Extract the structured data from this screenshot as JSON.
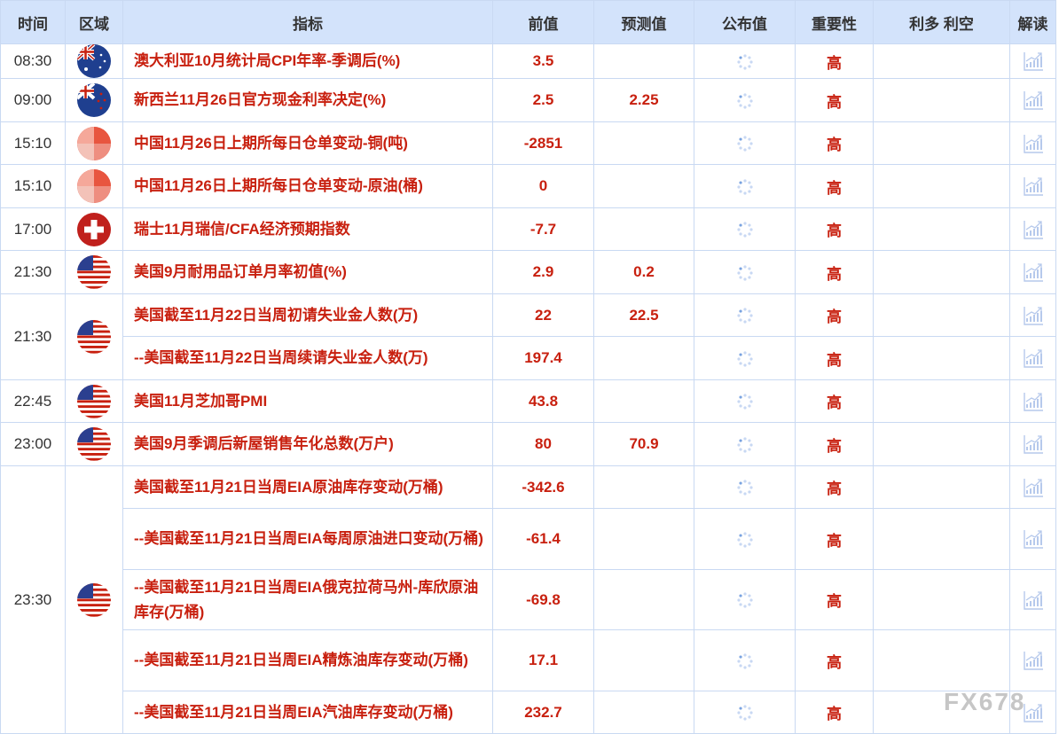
{
  "header": {
    "time": "时间",
    "region": "区域",
    "indicator": "指标",
    "previous": "前值",
    "forecast": "预测值",
    "actual": "公布值",
    "importance": "重要性",
    "impact": "利多 利空",
    "interpret": "解读"
  },
  "colors": {
    "header_bg": "#d3e3fb",
    "accent": "#c8200f",
    "border": "#c9d9f2"
  },
  "groups": [
    {
      "time": "08:30",
      "flag": "australia-flag",
      "rows": [
        {
          "indicator": "澳大利亚10月统计局CPI年率-季调后(%)",
          "previous": "3.5",
          "forecast": "",
          "importance": "高"
        }
      ]
    },
    {
      "time": "09:00",
      "flag": "new-zealand-flag",
      "rows": [
        {
          "indicator": "新西兰11月26日官方现金利率决定(%)",
          "previous": "2.5",
          "forecast": "2.25",
          "importance": "高"
        }
      ]
    },
    {
      "time": "15:10",
      "flag": "china-flag",
      "rows": [
        {
          "indicator": "中国11月26日上期所每日仓单变动-铜(吨)",
          "previous": "-2851",
          "forecast": "",
          "importance": "高"
        }
      ]
    },
    {
      "time": "15:10",
      "flag": "china-flag",
      "rows": [
        {
          "indicator": "中国11月26日上期所每日仓单变动-原油(桶)",
          "previous": "0",
          "forecast": "",
          "importance": "高"
        }
      ]
    },
    {
      "time": "17:00",
      "flag": "switzerland-flag",
      "rows": [
        {
          "indicator": "瑞士11月瑞信/CFA经济预期指数",
          "previous": "-7.7",
          "forecast": "",
          "importance": "高"
        }
      ]
    },
    {
      "time": "21:30",
      "flag": "usa-flag",
      "rows": [
        {
          "indicator": "美国9月耐用品订单月率初值(%)",
          "previous": "2.9",
          "forecast": "0.2",
          "importance": "高"
        }
      ]
    },
    {
      "time": "21:30",
      "flag": "usa-flag",
      "rows": [
        {
          "indicator": "美国截至11月22日当周初请失业金人数(万)",
          "previous": "22",
          "forecast": "22.5",
          "importance": "高"
        },
        {
          "indicator": "--美国截至11月22日当周续请失业金人数(万)",
          "previous": "197.4",
          "forecast": "",
          "importance": "高"
        }
      ]
    },
    {
      "time": "22:45",
      "flag": "usa-flag",
      "rows": [
        {
          "indicator": "美国11月芝加哥PMI",
          "previous": "43.8",
          "forecast": "",
          "importance": "高"
        }
      ]
    },
    {
      "time": "23:00",
      "flag": "usa-flag",
      "rows": [
        {
          "indicator": "美国9月季调后新屋销售年化总数(万户)",
          "previous": "80",
          "forecast": "70.9",
          "importance": "高"
        }
      ]
    },
    {
      "time": "23:30",
      "flag": "usa-flag",
      "rows": [
        {
          "indicator": "美国截至11月21日当周EIA原油库存变动(万桶)",
          "previous": "-342.6",
          "forecast": "",
          "importance": "高"
        },
        {
          "indicator": "--美国截至11月21日当周EIA每周原油进口变动(万桶)",
          "previous": "-61.4",
          "forecast": "",
          "importance": "高"
        },
        {
          "indicator": "--美国截至11月21日当周EIA俄克拉荷马州-库欣原油库存(万桶)",
          "previous": "-69.8",
          "forecast": "",
          "importance": "高"
        },
        {
          "indicator": "--美国截至11月21日当周EIA精炼油库存变动(万桶)",
          "previous": "17.1",
          "forecast": "",
          "importance": "高"
        },
        {
          "indicator": "--美国截至11月21日当周EIA汽油库存变动(万桶)",
          "previous": "232.7",
          "forecast": "",
          "importance": "高"
        }
      ]
    }
  ],
  "watermark": "FX678"
}
